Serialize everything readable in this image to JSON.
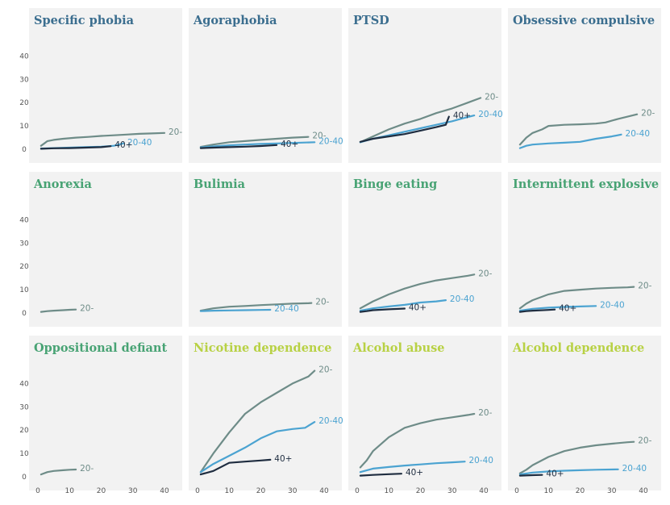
{
  "colors": {
    "title_anxiety": "#3b6e8f",
    "title_eating": "#48a374",
    "title_substance": "#b8d144",
    "series_young": "#6e8c88",
    "series_mid": "#4ba3d1",
    "series_old": "#1f2d40"
  },
  "chart_data": [
    {
      "type": "line",
      "title": "Specific phobia",
      "title_color": "title_anxiety",
      "xlim": [
        0,
        40
      ],
      "ylim": [
        0,
        45
      ],
      "x_ticks": [
        "0",
        "10",
        "20",
        "30",
        "40"
      ],
      "y_ticks": [
        "0",
        "10",
        "20",
        "30",
        "40"
      ],
      "series": [
        {
          "name": "20-",
          "color": "series_young",
          "x": [
            1,
            2,
            3,
            5,
            8,
            12,
            16,
            20,
            24,
            28,
            32,
            36,
            40
          ],
          "y": [
            1.5,
            2.5,
            3.5,
            4,
            4.5,
            5,
            5.3,
            5.7,
            6,
            6.3,
            6.6,
            6.8,
            7
          ]
        },
        {
          "name": "20-40",
          "color": "series_mid",
          "x": [
            1,
            5,
            10,
            15,
            20,
            24,
            27
          ],
          "y": [
            0.3,
            0.5,
            0.7,
            0.9,
            1.1,
            1.5,
            2.5
          ]
        },
        {
          "name": "40+",
          "color": "series_old",
          "x": [
            1,
            5,
            10,
            15,
            20,
            23
          ],
          "y": [
            0.2,
            0.4,
            0.5,
            0.7,
            0.9,
            1.3
          ]
        }
      ]
    },
    {
      "type": "line",
      "title": "Agoraphobia",
      "title_color": "title_anxiety",
      "xlim": [
        0,
        40
      ],
      "ylim": [
        0,
        45
      ],
      "x_ticks": [
        "0",
        "10",
        "20",
        "30",
        "40"
      ],
      "y_ticks": [
        "0",
        "10",
        "20",
        "30",
        "40"
      ],
      "series": [
        {
          "name": "20-",
          "color": "series_young",
          "x": [
            1,
            5,
            10,
            15,
            20,
            25,
            30,
            35
          ],
          "y": [
            1,
            2,
            3,
            3.5,
            4,
            4.5,
            5,
            5.3
          ]
        },
        {
          "name": "20-40",
          "color": "series_mid",
          "x": [
            1,
            5,
            10,
            15,
            20,
            25,
            30,
            37
          ],
          "y": [
            0.8,
            1.2,
            1.7,
            2,
            2.3,
            2.5,
            2.7,
            3
          ]
        },
        {
          "name": "40+",
          "color": "series_old",
          "x": [
            1,
            5,
            10,
            15,
            20,
            25
          ],
          "y": [
            0.5,
            0.7,
            0.9,
            1.1,
            1.4,
            1.8
          ]
        }
      ]
    },
    {
      "type": "line",
      "title": "PTSD",
      "title_color": "title_anxiety",
      "xlim": [
        0,
        40
      ],
      "ylim": [
        0,
        45
      ],
      "x_ticks": [
        "0",
        "10",
        "20",
        "30",
        "40"
      ],
      "y_ticks": [
        "0",
        "10",
        "20",
        "30",
        "40"
      ],
      "series": [
        {
          "name": "20-",
          "color": "series_young",
          "x": [
            1,
            5,
            10,
            15,
            20,
            25,
            30,
            35,
            39
          ],
          "y": [
            3,
            5.5,
            8.5,
            11,
            13,
            15.5,
            17.5,
            20,
            22
          ]
        },
        {
          "name": "20-40",
          "color": "series_mid",
          "x": [
            1,
            5,
            10,
            15,
            20,
            25,
            30,
            34,
            37
          ],
          "y": [
            3,
            4.5,
            6,
            7.5,
            9,
            10.5,
            12,
            13.5,
            14.5
          ]
        },
        {
          "name": "40+",
          "color": "series_old",
          "x": [
            1,
            5,
            10,
            15,
            20,
            25,
            28,
            29
          ],
          "y": [
            3.2,
            4.5,
            5.5,
            6.5,
            8,
            9.5,
            10.5,
            14
          ]
        }
      ]
    },
    {
      "type": "line",
      "title": "Obsessive compulsive",
      "title_color": "title_anxiety",
      "xlim": [
        0,
        40
      ],
      "ylim": [
        0,
        45
      ],
      "x_ticks": [
        "0",
        "10",
        "20",
        "30",
        "40"
      ],
      "y_ticks": [
        "0",
        "10",
        "20",
        "30",
        "40"
      ],
      "series": [
        {
          "name": "20-",
          "color": "series_young",
          "x": [
            1,
            3,
            5,
            8,
            10,
            15,
            20,
            25,
            28,
            32,
            35,
            38
          ],
          "y": [
            2,
            5,
            7,
            8.5,
            10,
            10.5,
            10.7,
            11,
            11.5,
            13,
            14,
            15
          ]
        },
        {
          "name": "20-40",
          "color": "series_mid",
          "x": [
            1,
            3,
            5,
            10,
            15,
            20,
            25,
            30,
            33
          ],
          "y": [
            0.5,
            1.5,
            2,
            2.5,
            2.8,
            3.2,
            4.5,
            5.5,
            6.3
          ]
        }
      ]
    },
    {
      "type": "line",
      "title": "Anorexia",
      "title_color": "title_eating",
      "xlim": [
        0,
        40
      ],
      "ylim": [
        0,
        45
      ],
      "x_ticks": [
        "0",
        "10",
        "20",
        "30",
        "40"
      ],
      "y_ticks": [
        "0",
        "10",
        "20",
        "30",
        "40"
      ],
      "series": [
        {
          "name": "20-",
          "color": "series_young",
          "x": [
            1,
            3,
            5,
            8,
            10,
            12
          ],
          "y": [
            0.5,
            0.8,
            1,
            1.2,
            1.4,
            1.5
          ]
        }
      ]
    },
    {
      "type": "line",
      "title": "Bulimia",
      "title_color": "title_eating",
      "xlim": [
        0,
        40
      ],
      "ylim": [
        0,
        45
      ],
      "x_ticks": [
        "0",
        "10",
        "20",
        "30",
        "40"
      ],
      "y_ticks": [
        "0",
        "10",
        "20",
        "30",
        "40"
      ],
      "series": [
        {
          "name": "20-",
          "color": "series_young",
          "x": [
            1,
            5,
            10,
            15,
            20,
            25,
            30,
            35,
            36
          ],
          "y": [
            1,
            2,
            2.7,
            3,
            3.4,
            3.7,
            4,
            4.2,
            4.3
          ]
        },
        {
          "name": "20-40",
          "color": "series_mid",
          "x": [
            1,
            5,
            10,
            15,
            20,
            23
          ],
          "y": [
            0.8,
            1,
            1.1,
            1.2,
            1.3,
            1.4
          ]
        }
      ]
    },
    {
      "type": "line",
      "title": "Binge eating",
      "title_color": "title_eating",
      "xlim": [
        0,
        40
      ],
      "ylim": [
        0,
        45
      ],
      "x_ticks": [
        "0",
        "10",
        "20",
        "30",
        "40"
      ],
      "y_ticks": [
        "0",
        "10",
        "20",
        "30",
        "40"
      ],
      "series": [
        {
          "name": "20-",
          "color": "series_young",
          "x": [
            1,
            3,
            5,
            10,
            15,
            20,
            25,
            30,
            35,
            37
          ],
          "y": [
            2,
            3.5,
            5,
            8,
            10.5,
            12.5,
            14,
            15,
            16,
            16.5
          ]
        },
        {
          "name": "20-40",
          "color": "series_mid",
          "x": [
            1,
            5,
            10,
            15,
            20,
            25,
            28
          ],
          "y": [
            1,
            2,
            2.8,
            3.5,
            4.5,
            5,
            5.5
          ]
        },
        {
          "name": "40+",
          "color": "series_old",
          "x": [
            1,
            3,
            5,
            10,
            15
          ],
          "y": [
            0.5,
            0.8,
            1.2,
            1.6,
            1.9
          ]
        }
      ]
    },
    {
      "type": "line",
      "title": "Intermittent explosive",
      "title_color": "title_eating",
      "xlim": [
        0,
        40
      ],
      "ylim": [
        0,
        45
      ],
      "x_ticks": [
        "0",
        "10",
        "20",
        "30",
        "40"
      ],
      "y_ticks": [
        "0",
        "10",
        "20",
        "30",
        "40"
      ],
      "series": [
        {
          "name": "20-",
          "color": "series_young",
          "x": [
            1,
            3,
            5,
            10,
            15,
            20,
            25,
            30,
            35,
            37
          ],
          "y": [
            2,
            4,
            5.5,
            8,
            9.5,
            10,
            10.5,
            10.8,
            11,
            11.2
          ]
        },
        {
          "name": "20-40",
          "color": "series_mid",
          "x": [
            1,
            5,
            10,
            15,
            20,
            25
          ],
          "y": [
            1,
            1.8,
            2.3,
            2.6,
            2.8,
            3
          ]
        },
        {
          "name": "40+",
          "color": "series_old",
          "x": [
            1,
            3,
            5,
            10,
            12
          ],
          "y": [
            0.5,
            0.8,
            1,
            1.3,
            1.5
          ]
        }
      ]
    },
    {
      "type": "line",
      "title": "Oppositional defiant",
      "title_color": "title_eating",
      "xlim": [
        0,
        40
      ],
      "ylim": [
        0,
        45
      ],
      "x_ticks": [
        "0",
        "10",
        "20",
        "30",
        "40"
      ],
      "y_ticks": [
        "0",
        "10",
        "20",
        "30",
        "40"
      ],
      "series": [
        {
          "name": "20-",
          "color": "series_young",
          "x": [
            1,
            3,
            5,
            8,
            10,
            12
          ],
          "y": [
            1,
            2,
            2.5,
            2.8,
            3,
            3.1
          ]
        }
      ]
    },
    {
      "type": "line",
      "title": "Nicotine dependence",
      "title_color": "title_substance",
      "xlim": [
        0,
        40
      ],
      "ylim": [
        0,
        45
      ],
      "x_ticks": [
        "0",
        "10",
        "20",
        "30",
        "40"
      ],
      "y_ticks": [
        "0",
        "10",
        "20",
        "30",
        "40"
      ],
      "series": [
        {
          "name": "20-",
          "color": "series_young",
          "x": [
            1,
            5,
            10,
            15,
            20,
            25,
            30,
            35,
            37
          ],
          "y": [
            2,
            10,
            19,
            27,
            32,
            36,
            40,
            43,
            45.5
          ]
        },
        {
          "name": "20-40",
          "color": "series_mid",
          "x": [
            1,
            5,
            10,
            15,
            20,
            25,
            30,
            34,
            37
          ],
          "y": [
            2,
            5.5,
            9,
            12.5,
            16.5,
            19.5,
            20.5,
            21,
            23.5
          ]
        },
        {
          "name": "40+",
          "color": "series_old",
          "x": [
            1,
            5,
            10,
            15,
            20,
            23
          ],
          "y": [
            1,
            2.5,
            6,
            6.5,
            7,
            7.3
          ]
        }
      ]
    },
    {
      "type": "line",
      "title": "Alcohol abuse",
      "title_color": "title_substance",
      "xlim": [
        0,
        40
      ],
      "ylim": [
        0,
        45
      ],
      "x_ticks": [
        "0",
        "10",
        "20",
        "30",
        "40"
      ],
      "y_ticks": [
        "0",
        "10",
        "20",
        "30",
        "40"
      ],
      "series": [
        {
          "name": "20-",
          "color": "series_young",
          "x": [
            1,
            3,
            5,
            10,
            15,
            20,
            25,
            30,
            35,
            37
          ],
          "y": [
            4,
            7,
            11,
            17,
            21,
            23,
            24.5,
            25.5,
            26.5,
            27
          ]
        },
        {
          "name": "20-40",
          "color": "series_mid",
          "x": [
            1,
            5,
            10,
            15,
            20,
            25,
            30,
            34
          ],
          "y": [
            2,
            3.5,
            4.2,
            4.8,
            5.3,
            5.8,
            6.2,
            6.5
          ]
        },
        {
          "name": "40+",
          "color": "series_old",
          "x": [
            1,
            5,
            10,
            14
          ],
          "y": [
            0.5,
            0.8,
            1.1,
            1.3
          ]
        }
      ]
    },
    {
      "type": "line",
      "title": "Alcohol dependence",
      "title_color": "title_substance",
      "xlim": [
        0,
        40
      ],
      "ylim": [
        0,
        45
      ],
      "x_ticks": [
        "0",
        "10",
        "20",
        "30",
        "40"
      ],
      "y_ticks": [
        "0",
        "10",
        "20",
        "30",
        "40"
      ],
      "series": [
        {
          "name": "20-",
          "color": "series_young",
          "x": [
            1,
            3,
            5,
            10,
            15,
            20,
            25,
            30,
            35,
            37
          ],
          "y": [
            1.5,
            3,
            5,
            8.5,
            11,
            12.5,
            13.5,
            14.2,
            14.8,
            15
          ]
        },
        {
          "name": "20-40",
          "color": "series_mid",
          "x": [
            1,
            5,
            10,
            15,
            20,
            25,
            32
          ],
          "y": [
            1,
            1.8,
            2.3,
            2.6,
            2.8,
            3,
            3.2
          ]
        },
        {
          "name": "40+",
          "color": "series_old",
          "x": [
            1,
            5,
            8
          ],
          "y": [
            0.5,
            0.7,
            0.8
          ]
        }
      ]
    }
  ]
}
